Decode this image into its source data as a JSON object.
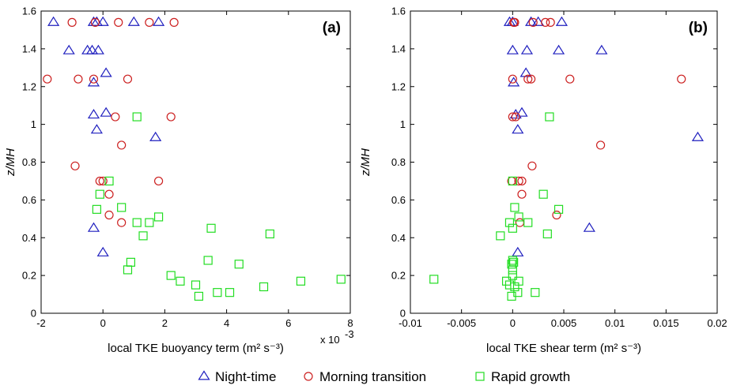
{
  "colors": {
    "night": "#1f1fbf",
    "morning": "#cc2020",
    "rapid": "#22dd22",
    "axis": "#000000"
  },
  "legend": {
    "items": [
      {
        "key": "night",
        "marker": "triangle",
        "label": "Night-time"
      },
      {
        "key": "morning",
        "marker": "circle",
        "label": "Morning transition"
      },
      {
        "key": "rapid",
        "marker": "square",
        "label": "Rapid growth"
      }
    ]
  },
  "chart_data": [
    {
      "type": "scatter",
      "panel_label": "(a)",
      "xlabel": "local TKE buoyancy term (m² s⁻³)",
      "ylabel": "z/MH",
      "x_exponent_label": "x 10",
      "x_exponent_power": "-3",
      "xlim": [
        -2,
        8
      ],
      "ylim": [
        0,
        1.6
      ],
      "xticks": [
        "-2",
        "0",
        "2",
        "4",
        "6",
        "8"
      ],
      "yticks": [
        "0",
        "0.2",
        "0.4",
        "0.6",
        "0.8",
        "1",
        "1.2",
        "1.4",
        "1.6"
      ],
      "series": [
        {
          "name": "Night-time",
          "key": "night",
          "marker": "triangle",
          "points": [
            [
              -1.6,
              1.54
            ],
            [
              -0.3,
              1.54
            ],
            [
              -0.2,
              1.54
            ],
            [
              0.0,
              1.54
            ],
            [
              1.0,
              1.54
            ],
            [
              1.8,
              1.54
            ],
            [
              -1.1,
              1.39
            ],
            [
              -0.5,
              1.39
            ],
            [
              -0.35,
              1.39
            ],
            [
              -0.15,
              1.39
            ],
            [
              0.1,
              1.27
            ],
            [
              -0.3,
              1.22
            ],
            [
              -0.3,
              1.05
            ],
            [
              0.1,
              1.06
            ],
            [
              -0.2,
              0.97
            ],
            [
              1.7,
              0.93
            ],
            [
              -0.3,
              0.45
            ],
            [
              0.0,
              0.32
            ]
          ]
        },
        {
          "name": "Morning transition",
          "key": "morning",
          "marker": "circle",
          "points": [
            [
              -1.0,
              1.54
            ],
            [
              -0.25,
              1.54
            ],
            [
              0.5,
              1.54
            ],
            [
              1.5,
              1.54
            ],
            [
              2.3,
              1.54
            ],
            [
              -1.8,
              1.24
            ],
            [
              -0.8,
              1.24
            ],
            [
              -0.3,
              1.24
            ],
            [
              0.8,
              1.24
            ],
            [
              0.4,
              1.04
            ],
            [
              2.2,
              1.04
            ],
            [
              0.6,
              0.89
            ],
            [
              -0.9,
              0.78
            ],
            [
              -0.1,
              0.7
            ],
            [
              0.0,
              0.7
            ],
            [
              1.8,
              0.7
            ],
            [
              0.2,
              0.63
            ],
            [
              0.2,
              0.52
            ],
            [
              0.6,
              0.48
            ]
          ]
        },
        {
          "name": "Rapid growth",
          "key": "rapid",
          "marker": "square",
          "points": [
            [
              1.1,
              1.04
            ],
            [
              0.2,
              0.7
            ],
            [
              -0.1,
              0.63
            ],
            [
              -0.2,
              0.55
            ],
            [
              0.6,
              0.56
            ],
            [
              1.8,
              0.51
            ],
            [
              1.1,
              0.48
            ],
            [
              1.5,
              0.48
            ],
            [
              1.3,
              0.41
            ],
            [
              3.5,
              0.45
            ],
            [
              5.4,
              0.42
            ],
            [
              3.4,
              0.28
            ],
            [
              0.9,
              0.27
            ],
            [
              4.4,
              0.26
            ],
            [
              0.8,
              0.23
            ],
            [
              2.2,
              0.2
            ],
            [
              2.5,
              0.17
            ],
            [
              3.0,
              0.15
            ],
            [
              5.2,
              0.14
            ],
            [
              6.4,
              0.17
            ],
            [
              7.7,
              0.18
            ],
            [
              3.7,
              0.11
            ],
            [
              4.1,
              0.11
            ],
            [
              3.1,
              0.09
            ]
          ]
        }
      ]
    },
    {
      "type": "scatter",
      "panel_label": "(b)",
      "xlabel": "local TKE shear term (m² s⁻³)",
      "ylabel": "z/MH",
      "xlim": [
        -0.01,
        0.02
      ],
      "ylim": [
        0,
        1.6
      ],
      "xticks": [
        "-0.01",
        "-0.005",
        "0",
        "0.005",
        "0.01",
        "0.015",
        "0.02"
      ],
      "yticks": [
        "0",
        "0.2",
        "0.4",
        "0.6",
        "0.8",
        "1",
        "1.2",
        "1.4",
        "1.6"
      ],
      "series": [
        {
          "name": "Night-time",
          "key": "night",
          "marker": "triangle",
          "points": [
            [
              -0.0003,
              1.54
            ],
            [
              0.0,
              1.54
            ],
            [
              0.0018,
              1.54
            ],
            [
              0.0025,
              1.54
            ],
            [
              0.0048,
              1.54
            ],
            [
              0.0,
              1.39
            ],
            [
              0.0014,
              1.39
            ],
            [
              0.0045,
              1.39
            ],
            [
              0.0087,
              1.39
            ],
            [
              0.0013,
              1.27
            ],
            [
              0.0001,
              1.22
            ],
            [
              0.0003,
              1.05
            ],
            [
              0.0009,
              1.06
            ],
            [
              0.0005,
              0.97
            ],
            [
              0.0181,
              0.93
            ],
            [
              0.0075,
              0.45
            ],
            [
              0.0005,
              0.32
            ]
          ]
        },
        {
          "name": "Morning transition",
          "key": "morning",
          "marker": "circle",
          "points": [
            [
              0.0001,
              1.54
            ],
            [
              0.0002,
              1.54
            ],
            [
              0.002,
              1.54
            ],
            [
              0.0032,
              1.54
            ],
            [
              0.0037,
              1.54
            ],
            [
              0.0,
              1.24
            ],
            [
              0.0015,
              1.24
            ],
            [
              0.0018,
              1.24
            ],
            [
              0.0056,
              1.24
            ],
            [
              0.0165,
              1.24
            ],
            [
              0.0,
              1.04
            ],
            [
              0.0003,
              1.04
            ],
            [
              0.0086,
              0.89
            ],
            [
              0.0019,
              0.78
            ],
            [
              -0.0001,
              0.7
            ],
            [
              0.0006,
              0.7
            ],
            [
              0.0009,
              0.7
            ],
            [
              0.0009,
              0.63
            ],
            [
              0.0043,
              0.52
            ],
            [
              0.0007,
              0.48
            ]
          ]
        },
        {
          "name": "Rapid growth",
          "key": "rapid",
          "marker": "square",
          "points": [
            [
              0.0036,
              1.04
            ],
            [
              0.0,
              0.7
            ],
            [
              0.003,
              0.63
            ],
            [
              0.0045,
              0.55
            ],
            [
              0.0002,
              0.56
            ],
            [
              0.0006,
              0.51
            ],
            [
              -0.0003,
              0.48
            ],
            [
              0.0015,
              0.48
            ],
            [
              0.0,
              0.45
            ],
            [
              0.0034,
              0.42
            ],
            [
              -0.0012,
              0.41
            ],
            [
              0.0,
              0.28
            ],
            [
              0.0001,
              0.27
            ],
            [
              -0.0001,
              0.26
            ],
            [
              0.0,
              0.23
            ],
            [
              0.0,
              0.2
            ],
            [
              -0.0006,
              0.17
            ],
            [
              0.0006,
              0.17
            ],
            [
              -0.0003,
              0.15
            ],
            [
              0.0002,
              0.14
            ],
            [
              -0.0077,
              0.18
            ],
            [
              0.0005,
              0.11
            ],
            [
              0.0022,
              0.11
            ],
            [
              -0.0001,
              0.09
            ]
          ]
        }
      ]
    }
  ]
}
